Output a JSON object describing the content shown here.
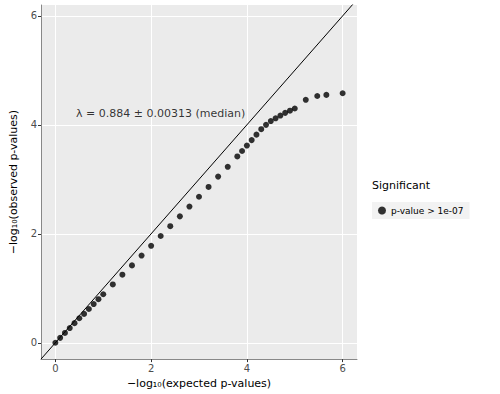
{
  "chart_data": {
    "type": "scatter",
    "x_label": "−log₁₀(expected p-values)",
    "y_label": "−log₁₀(observed p-values)",
    "xlim": [
      -0.3,
      6.3
    ],
    "ylim": [
      -0.3,
      6.2
    ],
    "xticks": [
      0,
      2,
      4,
      6
    ],
    "yticks": [
      0,
      2,
      4,
      6
    ],
    "grid": true,
    "legend": "right",
    "legend_title": "Significant",
    "series": [
      {
        "name": "p-value > 1e-07",
        "color": "#000000",
        "marker": "circle",
        "x": [
          0.0,
          0.1,
          0.2,
          0.3,
          0.4,
          0.5,
          0.6,
          0.7,
          0.8,
          0.9,
          1.0,
          1.2,
          1.4,
          1.6,
          1.8,
          2.0,
          2.2,
          2.4,
          2.6,
          2.8,
          3.0,
          3.2,
          3.4,
          3.6,
          3.8,
          3.9,
          4.0,
          4.1,
          4.2,
          4.3,
          4.4,
          4.5,
          4.6,
          4.7,
          4.8,
          4.9,
          5.0,
          5.23,
          5.47,
          5.66,
          6.0
        ],
        "y": [
          0.0,
          0.09,
          0.18,
          0.27,
          0.36,
          0.45,
          0.53,
          0.62,
          0.71,
          0.8,
          0.89,
          1.07,
          1.25,
          1.42,
          1.6,
          1.78,
          1.96,
          2.14,
          2.32,
          2.5,
          2.68,
          2.86,
          3.05,
          3.23,
          3.42,
          3.52,
          3.62,
          3.72,
          3.82,
          3.92,
          4.0,
          4.07,
          4.12,
          4.17,
          4.22,
          4.26,
          4.3,
          4.46,
          4.53,
          4.55,
          4.58
        ]
      }
    ],
    "reference_line": {
      "x": [
        -0.3,
        6.3
      ],
      "y": [
        -0.3,
        6.3
      ],
      "color": "#000000"
    },
    "annotations": [
      {
        "text": "λ = 0.884 ± 0.00313 (median)",
        "x": 2.2,
        "y": 4.2
      }
    ]
  }
}
